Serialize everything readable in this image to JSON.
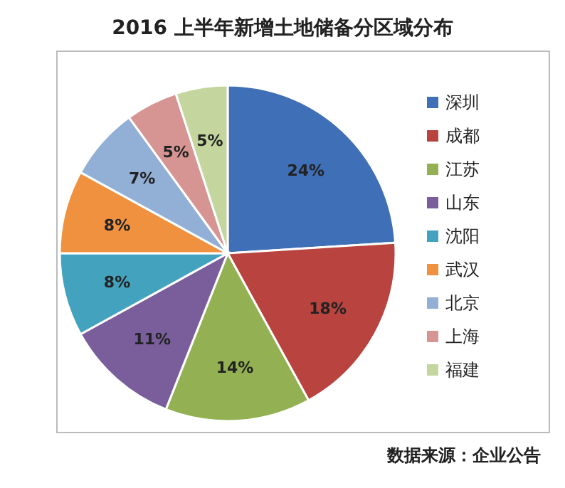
{
  "chart_data": {
    "type": "pie",
    "title": "2016 上半年新增土地储备分区域分布",
    "categories": [
      "深圳",
      "成都",
      "江苏",
      "山东",
      "沈阳",
      "武汉",
      "北京",
      "上海",
      "福建"
    ],
    "values": [
      24,
      18,
      14,
      11,
      8,
      8,
      7,
      5,
      5
    ],
    "colors": [
      "#3f6fb6",
      "#b8433f",
      "#93b152",
      "#7a5e9c",
      "#43a3bf",
      "#f0913f",
      "#92afd6",
      "#d69592",
      "#c4d69e"
    ],
    "value_labels": [
      "24%",
      "18%",
      "14%",
      "11%",
      "8%",
      "8%",
      "7%",
      "5%",
      "5%"
    ],
    "legend": "right",
    "annotations": [
      "数据来源：企业公告"
    ]
  }
}
